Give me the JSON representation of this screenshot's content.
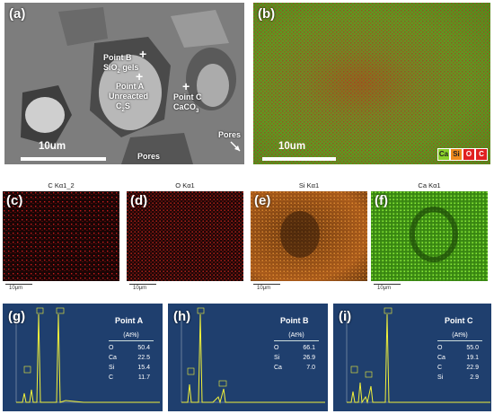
{
  "panels": {
    "a": {
      "label": "(a)",
      "scale": "10um",
      "point_b": "Point B",
      "sio2_prefix": "SiO",
      "sio2_sub": "2",
      "sio2_suffix": " gels",
      "point_a": "Point A",
      "unreacted": "Unreacted",
      "c2s_prefix": "C",
      "c2s_sub": "2",
      "c2s_suffix": "S",
      "point_c": "Point C",
      "caco3_prefix": "CaCO",
      "caco3_sub": "3",
      "pores_1": "Pores",
      "pores_2": "Pores"
    },
    "b": {
      "label": "(b)",
      "scale": "10um",
      "legend": [
        {
          "text": "Ca",
          "bg": "#8bd12b"
        },
        {
          "text": "Si",
          "bg": "#f08a1c"
        },
        {
          "text": "O",
          "bg": "#e02020"
        },
        {
          "text": "C",
          "bg": "#e02020"
        }
      ]
    },
    "c": {
      "label": "(c)",
      "title": "C Kα1_2",
      "scale": "10μm",
      "color": "#c81b1b"
    },
    "d": {
      "label": "(d)",
      "title": "O Kα1",
      "scale": "10μm",
      "color": "#c8241b"
    },
    "e": {
      "label": "(e)",
      "title": "Si Kα1",
      "scale": "10μm",
      "color": "#e08a2a"
    },
    "f": {
      "label": "(f)",
      "title": "Ca Kα1",
      "scale": "10μm",
      "color": "#69d11e"
    },
    "g": {
      "label": "(g)",
      "point": "Point A",
      "unit": "(At%)",
      "rows": [
        [
          "O",
          "50.4"
        ],
        [
          "Ca",
          "22.5"
        ],
        [
          "Si",
          "15.4"
        ],
        [
          "C",
          "11.7"
        ]
      ]
    },
    "h": {
      "label": "(h)",
      "point": "Point B",
      "unit": "(At%)",
      "rows": [
        [
          "O",
          "66.1"
        ],
        [
          "Si",
          "26.9"
        ],
        [
          "Ca",
          "7.0"
        ]
      ]
    },
    "i": {
      "label": "(i)",
      "point": "Point C",
      "unit": "(At%)",
      "rows": [
        [
          "O",
          "55.0"
        ],
        [
          "Ca",
          "19.1"
        ],
        [
          "C",
          "22.9"
        ],
        [
          "Si",
          "2.9"
        ]
      ]
    }
  },
  "colors": {
    "spectrum_bg": "#1f3f6e",
    "spectrum_line": "#f2f23a",
    "annotation": "#ffffff"
  }
}
